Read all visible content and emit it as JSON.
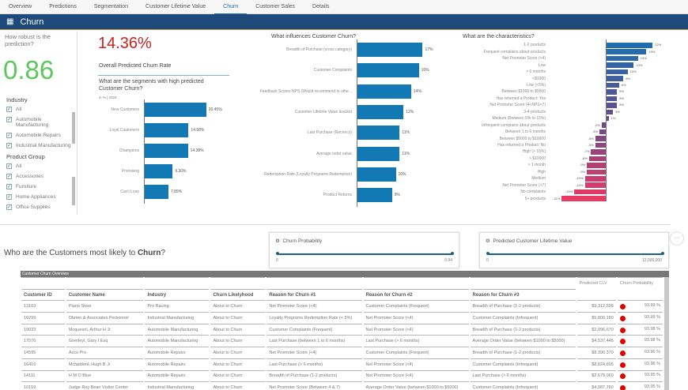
{
  "tabs": [
    "Overview",
    "Predictions",
    "Segmentation",
    "Customer Lifetime Value",
    "Churn",
    "Customer Sales",
    "Details"
  ],
  "active_tab": "Churn",
  "header": {
    "title": "Churn",
    "icon": "app-grid-icon"
  },
  "robust": {
    "question": "How robust is the prediction?",
    "value": "0.86"
  },
  "filters": {
    "industry": {
      "title": "Industry",
      "items": [
        "All",
        "Automobile Manufacturing",
        "Automobile Repairs",
        "Industrial Manufacturing"
      ]
    },
    "product": {
      "title": "Product Group",
      "items": [
        "All",
        "Accessories",
        "Furniture",
        "Home Appliances",
        "Office Supplies"
      ]
    }
  },
  "kpi": {
    "value": "14.36%",
    "label": "Overall Predicted Churn Rate",
    "color": "#cc1f1f"
  },
  "chart_data": [
    {
      "type": "bar",
      "orientation": "horizontal",
      "title": "What are the segments with high predicted Customer Churn?",
      "subtitle": "in % | 2020",
      "categories": [
        "New Customers",
        "Loyal Customers",
        "Champions",
        "Promising",
        "Can't Lose"
      ],
      "values": [
        20.45,
        14.58,
        14.38,
        9.3,
        7.89
      ],
      "labels": [
        "20.45%",
        "14.58%",
        "14.38%",
        "9.30%",
        "7.89%"
      ],
      "color": "#1379b5"
    },
    {
      "type": "bar",
      "orientation": "horizontal",
      "title": "What influences Customer Churn?",
      "categories": [
        "Breadth of Purchase (cross category)",
        "Customer Complaints",
        "Feedback Scores NPS (Would recommend to othe...",
        "Customer Lifetime Value bracket",
        "Last Purchase (Recency)",
        "Average order value",
        "Redemption Rate (Loyalty Programs Redemption)",
        "Product Returns"
      ],
      "values": [
        17,
        16,
        14,
        12,
        11,
        11,
        10,
        9
      ],
      "labels": [
        "17%",
        "16%",
        "14%",
        "12%",
        "11%",
        "11%",
        "10%",
        "9%"
      ],
      "color": "#1379b5"
    },
    {
      "type": "bar",
      "orientation": "horizontal",
      "title": "What are the characteristics?",
      "categories": [
        "1-2 products",
        "Frequent complains about products",
        "Net Promoter Score (<4)",
        "Low",
        "> 6 months",
        "<$1000",
        "Low (<5%)",
        "Between $1000 to $5000",
        "Has returned a Product: Yes",
        "Net Promoter Score (4<NPS<7)",
        "3-4 products",
        "Medium (Between 5% to 15%)",
        "Infrequent complains about products",
        "Between 1 to 6 months",
        "Between $5000 to $10000",
        "Has returned a Product: No",
        "High (> 15%)",
        "> $10000",
        "< 1 month",
        "High",
        "Medium",
        "Net Promoter Score (>7)",
        "No complaints",
        "5+ products"
      ],
      "values": [
        22,
        19,
        15,
        13,
        10,
        8,
        6,
        5,
        5,
        5,
        3,
        1,
        -2,
        -3,
        -5,
        -5,
        -7,
        -8,
        -9,
        -9,
        -10,
        -10,
        -15,
        -21
      ],
      "colors": {
        "top": "#1f6fb0",
        "mid": "#6a4a8a",
        "bottom": "#e83a62"
      }
    }
  ],
  "customers": {
    "title_prefix": "Who are the Customers most likely to ",
    "title_bold": "Churn",
    "title_suffix": "?",
    "slider1": {
      "label": "Churn Probability",
      "min": "0",
      "max": "0.94",
      "icon": "filter-settings-icon"
    },
    "slider2": {
      "label": "Predicted Customer Lifetime Value",
      "min": "0",
      "max": "12,000,000",
      "icon": "filter-settings-icon"
    },
    "more": "···"
  },
  "table": {
    "title": "Customer Churn Overview",
    "group_headers": [
      "Predicted CLV",
      "Churn Probability"
    ],
    "columns": [
      "Customer ID",
      "Customer Name",
      "Industry",
      "Churn Likelyhood",
      "Reason for Churn #1",
      "Reason for Churn #2",
      "Reason for Churn #3"
    ],
    "rows": [
      [
        "13163",
        "Piano Store",
        "Pro Racing",
        "About to Churn",
        "Net Promoter Score (<4)",
        "Customer Complaints (Frequent)",
        "Breadth of Purchase (1-2 products)",
        "$9,312,595",
        "93.99 %"
      ],
      [
        "10299",
        "Obrien & Associates Personnel",
        "Industrial Manufacturing",
        "About to Churn",
        "Loyalty Programs Redemption Rate (< 5%)",
        "Net Promoter Score (<4)",
        "Customer Complaints (Infrequent)",
        "$5,800,180",
        "93.99 %"
      ],
      [
        "19033",
        "Mcqueenl, Arthur H Jr",
        "Automobile Manufacturing",
        "About to Churn",
        "Customer Complaints (Frequent)",
        "Net Promoter Score (<4)",
        "Breadth of Purchase (1-2 products)",
        "$2,096,670",
        "93.98 %"
      ],
      [
        "17570",
        "Grenleyl, Gary I Esq",
        "Automobile Manufacturing",
        "About to Churn",
        "Last Purchase (between 1 to 6 months)",
        "Last Purchase (> 6 months)",
        "Average Order Value (between $1000 to $5000)",
        "$4,537,445",
        "93.98 %"
      ],
      [
        "14595",
        "Accu Pro",
        "Automobile Repairs",
        "About to Churn",
        "Net Promoter Score (<4)",
        "Customer Complaints (Frequent)",
        "Breadth of Purchase (1-2 products)",
        "$8,390,370",
        "93.96 %"
      ],
      [
        "16416",
        "Mcfaddenl, Hugh B Jr",
        "Automobile Repairs",
        "About to Churn",
        "Last Purchase (> 6 months)",
        "Net Promoter Score (<4)",
        "Customer Complaints (Infrequent)",
        "$8,824,695",
        "93.96 %"
      ],
      [
        "14111",
        "H M O Blue",
        "Automobile Repairs",
        "About to Churn",
        "Breadth of Purchase (1-2 products)",
        "Net Promoter Score (<4)",
        "Last Purchase (> 6 months)",
        "$2,679,060",
        "93.95 %"
      ],
      [
        "10159",
        "Judge Roy Bean Visitor Center",
        "Industrial Manufacturing",
        "About to Churn",
        "Net Promoter Score (Between 4 & 7)",
        "Average Order Value (between $1000 to $5000)",
        "Customer Complaints (Infrequent)",
        "$4,987,760",
        "93.95 %"
      ]
    ],
    "status_color": "#e00000"
  }
}
